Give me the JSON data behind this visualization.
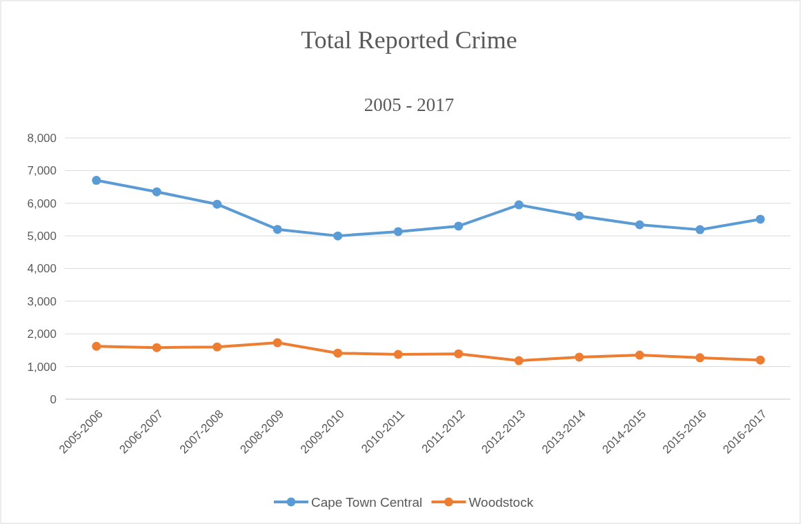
{
  "chart_data": {
    "type": "line",
    "title": "Total Reported Crime",
    "subtitle": "2005 - 2017",
    "categories": [
      "2005-2006",
      "2006-2007",
      "2007-2008",
      "2008-2009",
      "2009-2010",
      "2010-2011",
      "2011-2012",
      "2012-2013",
      "2013-2014",
      "2014-2015",
      "2015-2016",
      "2016-2017"
    ],
    "series": [
      {
        "name": "Cape Town Central",
        "color": "#5b9bd5",
        "values": [
          6700,
          6350,
          5970,
          5200,
          5000,
          5130,
          5300,
          5950,
          5610,
          5340,
          5190,
          5510
        ]
      },
      {
        "name": "Woodstock",
        "color": "#ed7d31",
        "values": [
          1620,
          1580,
          1600,
          1730,
          1410,
          1370,
          1390,
          1180,
          1290,
          1350,
          1270,
          1200
        ]
      }
    ],
    "ylim": [
      0,
      8000
    ],
    "yticks": [
      {
        "value": 0,
        "label": "0"
      },
      {
        "value": 1000,
        "label": "1,000"
      },
      {
        "value": 2000,
        "label": "2,000"
      },
      {
        "value": 3000,
        "label": "3,000"
      },
      {
        "value": 4000,
        "label": "4,000"
      },
      {
        "value": 5000,
        "label": "5,000"
      },
      {
        "value": 6000,
        "label": "6,000"
      },
      {
        "value": 7000,
        "label": "7,000"
      },
      {
        "value": 8000,
        "label": "8,000"
      }
    ],
    "grid": "y",
    "legend": "bottom",
    "marker": "circle",
    "line_style": "solid"
  }
}
